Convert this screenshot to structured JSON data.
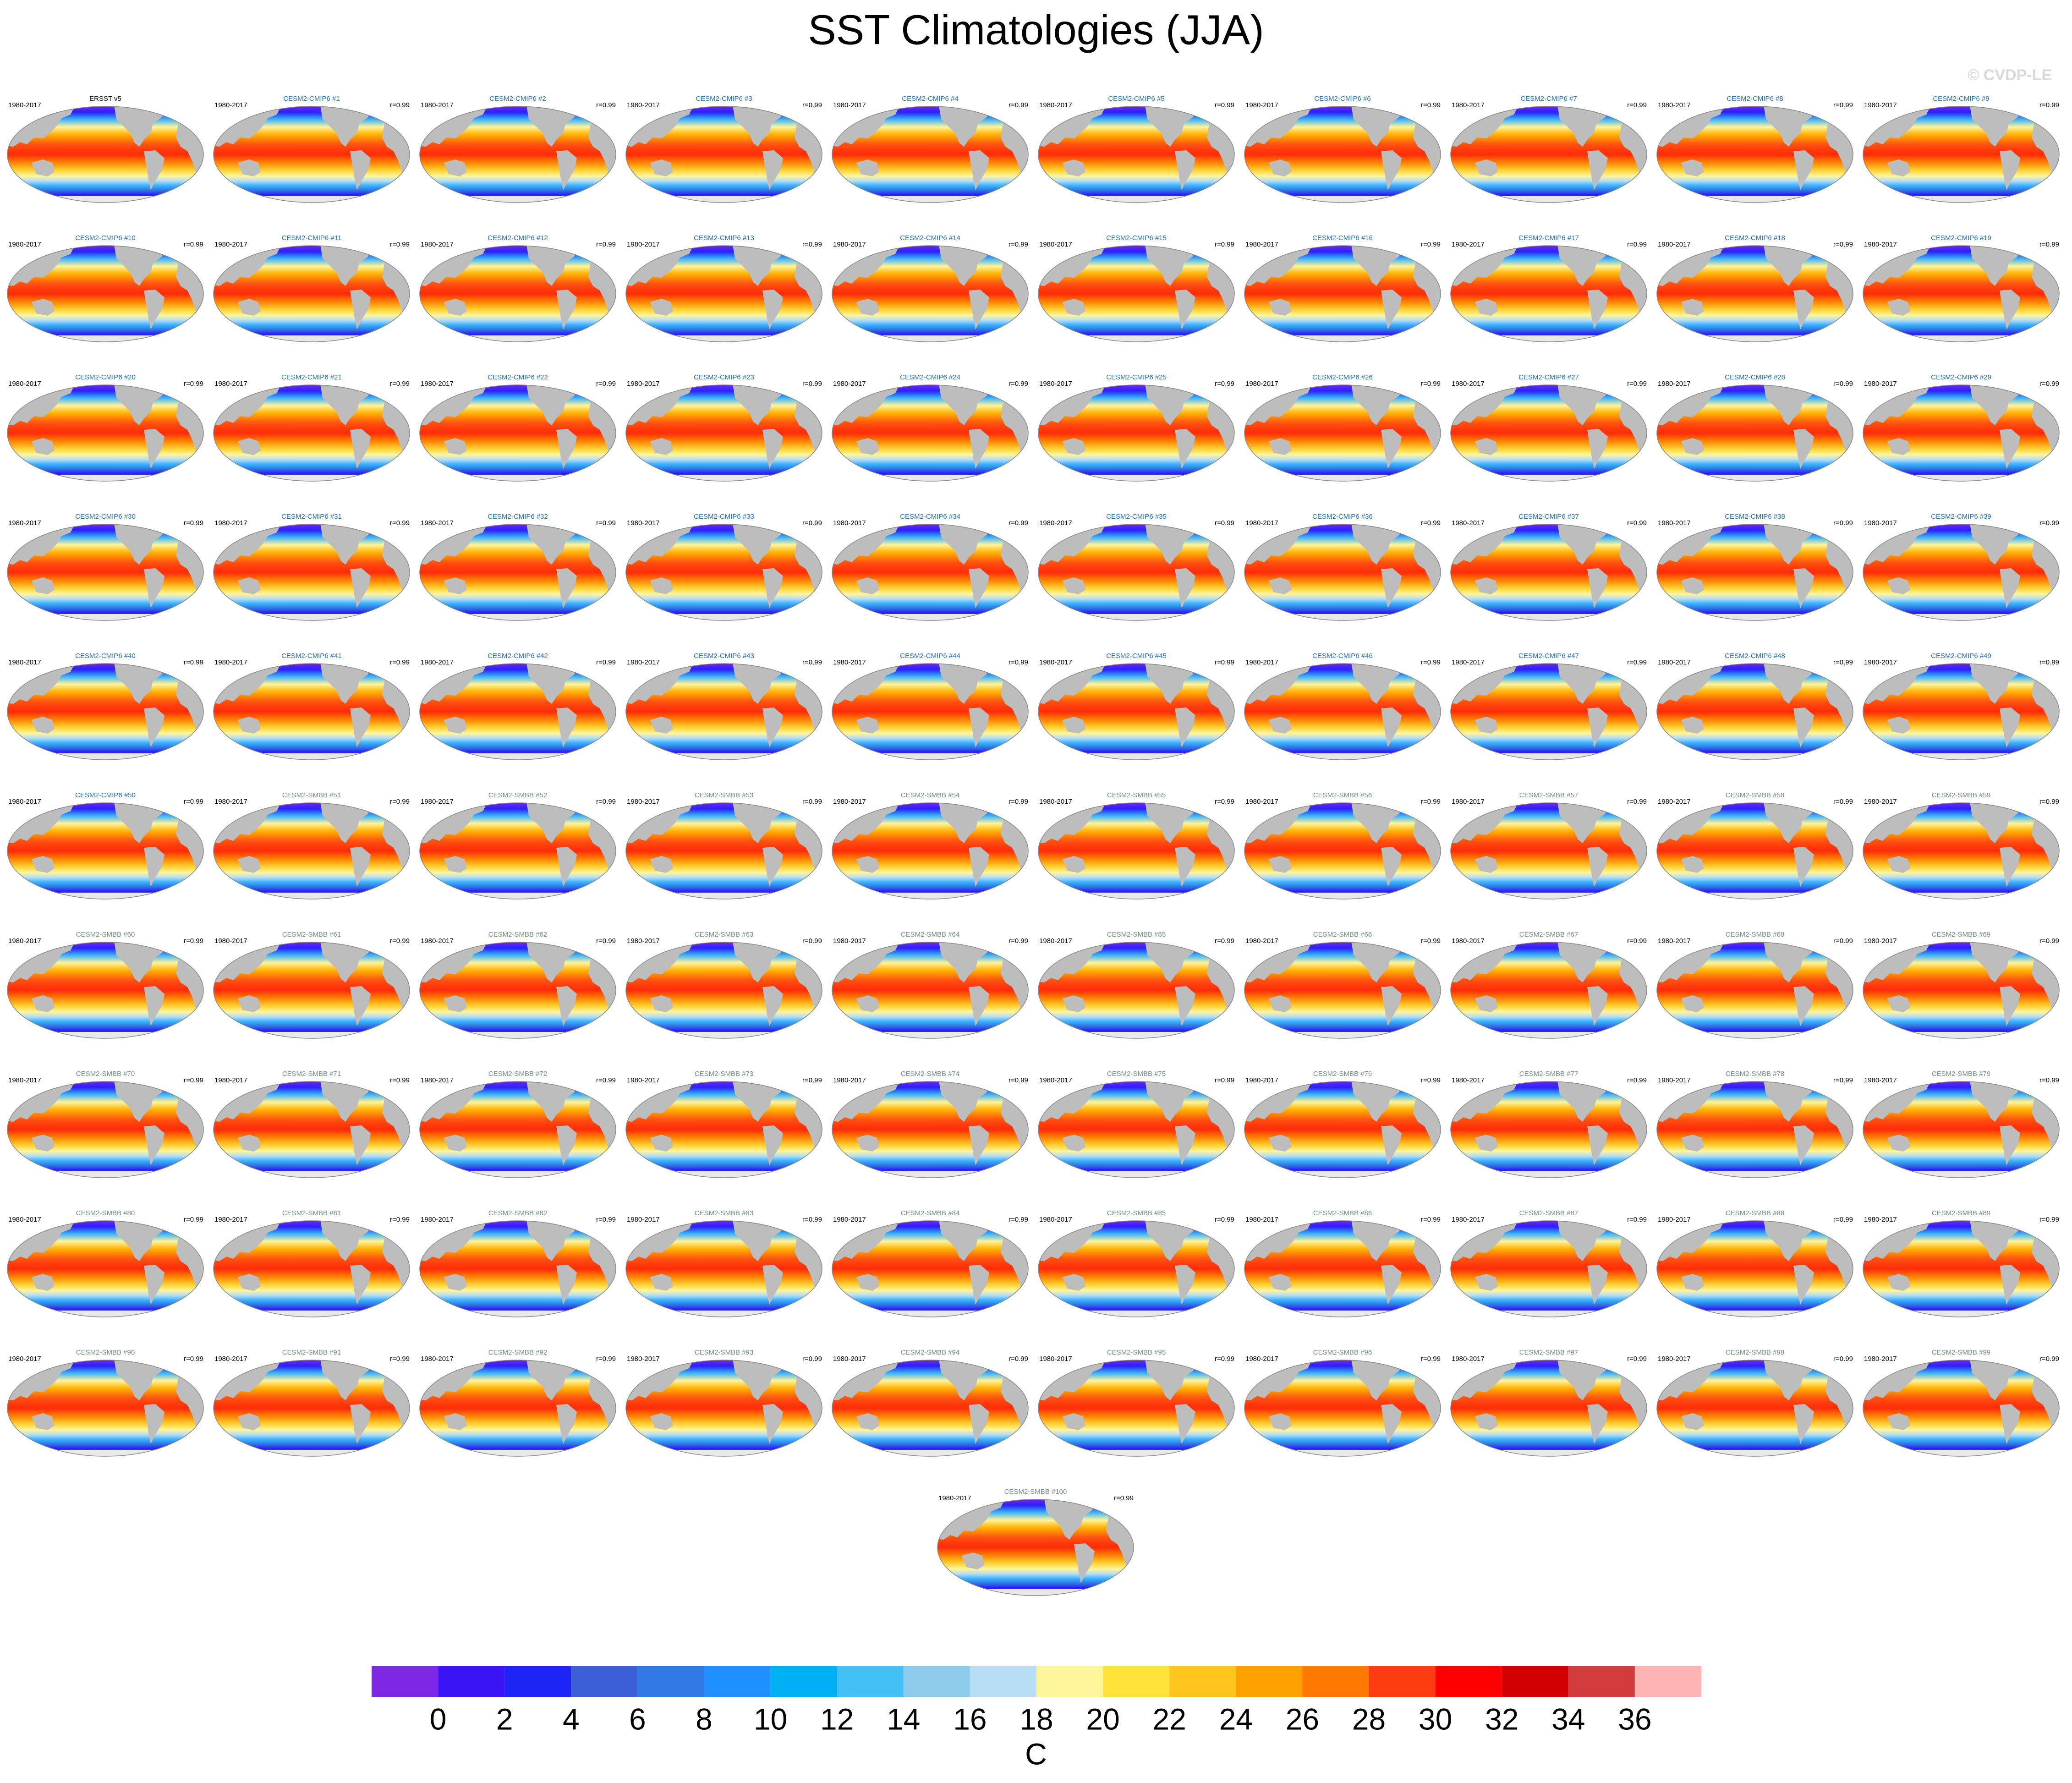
{
  "title": "SST Climatologies (JJA)",
  "watermark": "© CVDP-LE",
  "groups": [
    {
      "color": "#000000",
      "panels": [
        {
          "title": "ERSST v5",
          "period": "1980-2017"
        }
      ]
    },
    {
      "color": "#1f6fb5",
      "panels": [
        {
          "title": "CESM2-CMIP6 #1",
          "period": "1980-2017",
          "r": "r=0.99"
        },
        {
          "title": "CESM2-CMIP6 #2",
          "period": "1980-2017",
          "r": "r=0.99"
        },
        {
          "title": "CESM2-CMIP6 #3",
          "period": "1980-2017",
          "r": "r=0.99"
        },
        {
          "title": "CESM2-CMIP6 #4",
          "period": "1980-2017",
          "r": "r=0.99"
        },
        {
          "title": "CESM2-CMIP6 #5",
          "period": "1980-2017",
          "r": "r=0.99"
        },
        {
          "title": "CESM2-CMIP6 #6",
          "period": "1980-2017",
          "r": "r=0.99"
        },
        {
          "title": "CESM2-CMIP6 #7",
          "period": "1980-2017",
          "r": "r=0.99"
        },
        {
          "title": "CESM2-CMIP6 #8",
          "period": "1980-2017",
          "r": "r=0.99"
        },
        {
          "title": "CESM2-CMIP6 #9",
          "period": "1980-2017",
          "r": "r=0.99"
        },
        {
          "title": "CESM2-CMIP6 #10",
          "period": "1980-2017",
          "r": "r=0.99"
        },
        {
          "title": "CESM2-CMIP6 #11",
          "period": "1980-2017",
          "r": "r=0.99"
        },
        {
          "title": "CESM2-CMIP6 #12",
          "period": "1980-2017",
          "r": "r=0.99"
        },
        {
          "title": "CESM2-CMIP6 #13",
          "period": "1980-2017",
          "r": "r=0.99"
        },
        {
          "title": "CESM2-CMIP6 #14",
          "period": "1980-2017",
          "r": "r=0.99"
        },
        {
          "title": "CESM2-CMIP6 #15",
          "period": "1980-2017",
          "r": "r=0.99"
        },
        {
          "title": "CESM2-CMIP6 #16",
          "period": "1980-2017",
          "r": "r=0.99"
        },
        {
          "title": "CESM2-CMIP6 #17",
          "period": "1980-2017",
          "r": "r=0.99"
        },
        {
          "title": "CESM2-CMIP6 #18",
          "period": "1980-2017",
          "r": "r=0.99"
        },
        {
          "title": "CESM2-CMIP6 #19",
          "period": "1980-2017",
          "r": "r=0.99"
        },
        {
          "title": "CESM2-CMIP6 #20",
          "period": "1980-2017",
          "r": "r=0.99"
        },
        {
          "title": "CESM2-CMIP6 #21",
          "period": "1980-2017",
          "r": "r=0.99"
        },
        {
          "title": "CESM2-CMIP6 #22",
          "period": "1980-2017",
          "r": "r=0.99"
        },
        {
          "title": "CESM2-CMIP6 #23",
          "period": "1980-2017",
          "r": "r=0.99"
        },
        {
          "title": "CESM2-CMIP6 #24",
          "period": "1980-2017",
          "r": "r=0.99"
        },
        {
          "title": "CESM2-CMIP6 #25",
          "period": "1980-2017",
          "r": "r=0.99"
        },
        {
          "title": "CESM2-CMIP6 #26",
          "period": "1980-2017",
          "r": "r=0.99"
        },
        {
          "title": "CESM2-CMIP6 #27",
          "period": "1980-2017",
          "r": "r=0.99"
        },
        {
          "title": "CESM2-CMIP6 #28",
          "period": "1980-2017",
          "r": "r=0.99"
        },
        {
          "title": "CESM2-CMIP6 #29",
          "period": "1980-2017",
          "r": "r=0.99"
        },
        {
          "title": "CESM2-CMIP6 #30",
          "period": "1980-2017",
          "r": "r=0.99"
        },
        {
          "title": "CESM2-CMIP6 #31",
          "period": "1980-2017",
          "r": "r=0.99"
        },
        {
          "title": "CESM2-CMIP6 #32",
          "period": "1980-2017",
          "r": "r=0.99"
        },
        {
          "title": "CESM2-CMIP6 #33",
          "period": "1980-2017",
          "r": "r=0.99"
        },
        {
          "title": "CESM2-CMIP6 #34",
          "period": "1980-2017",
          "r": "r=0.99"
        },
        {
          "title": "CESM2-CMIP6 #35",
          "period": "1980-2017",
          "r": "r=0.99"
        },
        {
          "title": "CESM2-CMIP6 #36",
          "period": "1980-2017",
          "r": "r=0.99"
        },
        {
          "title": "CESM2-CMIP6 #37",
          "period": "1980-2017",
          "r": "r=0.99"
        },
        {
          "title": "CESM2-CMIP6 #38",
          "period": "1980-2017",
          "r": "r=0.99"
        },
        {
          "title": "CESM2-CMIP6 #39",
          "period": "1980-2017",
          "r": "r=0.99"
        },
        {
          "title": "CESM2-CMIP6 #40",
          "period": "1980-2017",
          "r": "r=0.99"
        },
        {
          "title": "CESM2-CMIP6 #41",
          "period": "1980-2017",
          "r": "r=0.99"
        },
        {
          "title": "CESM2-CMIP6 #42",
          "period": "1980-2017",
          "r": "r=0.99"
        },
        {
          "title": "CESM2-CMIP6 #43",
          "period": "1980-2017",
          "r": "r=0.99"
        },
        {
          "title": "CESM2-CMIP6 #44",
          "period": "1980-2017",
          "r": "r=0.99"
        },
        {
          "title": "CESM2-CMIP6 #45",
          "period": "1980-2017",
          "r": "r=0.99"
        },
        {
          "title": "CESM2-CMIP6 #46",
          "period": "1980-2017",
          "r": "r=0.99"
        },
        {
          "title": "CESM2-CMIP6 #47",
          "period": "1980-2017",
          "r": "r=0.99"
        },
        {
          "title": "CESM2-CMIP6 #48",
          "period": "1980-2017",
          "r": "r=0.99"
        },
        {
          "title": "CESM2-CMIP6 #49",
          "period": "1980-2017",
          "r": "r=0.99"
        },
        {
          "title": "CESM2-CMIP6 #50",
          "period": "1980-2017",
          "r": "r=0.99"
        }
      ]
    },
    {
      "color": "#6f8f80",
      "panels": [
        {
          "title": "CESM2-SMBB #51",
          "period": "1980-2017",
          "r": "r=0.99"
        },
        {
          "title": "CESM2-SMBB #52",
          "period": "1980-2017",
          "r": "r=0.99"
        },
        {
          "title": "CESM2-SMBB #53",
          "period": "1980-2017",
          "r": "r=0.99"
        },
        {
          "title": "CESM2-SMBB #54",
          "period": "1980-2017",
          "r": "r=0.99"
        },
        {
          "title": "CESM2-SMBB #55",
          "period": "1980-2017",
          "r": "r=0.99"
        },
        {
          "title": "CESM2-SMBB #56",
          "period": "1980-2017",
          "r": "r=0.99"
        },
        {
          "title": "CESM2-SMBB #57",
          "period": "1980-2017",
          "r": "r=0.99"
        },
        {
          "title": "CESM2-SMBB #58",
          "period": "1980-2017",
          "r": "r=0.99"
        },
        {
          "title": "CESM2-SMBB #59",
          "period": "1980-2017",
          "r": "r=0.99"
        },
        {
          "title": "CESM2-SMBB #60",
          "period": "1980-2017",
          "r": "r=0.99"
        },
        {
          "title": "CESM2-SMBB #61",
          "period": "1980-2017",
          "r": "r=0.99"
        },
        {
          "title": "CESM2-SMBB #62",
          "period": "1980-2017",
          "r": "r=0.99"
        },
        {
          "title": "CESM2-SMBB #63",
          "period": "1980-2017",
          "r": "r=0.99"
        },
        {
          "title": "CESM2-SMBB #64",
          "period": "1980-2017",
          "r": "r=0.99"
        },
        {
          "title": "CESM2-SMBB #65",
          "period": "1980-2017",
          "r": "r=0.99"
        },
        {
          "title": "CESM2-SMBB #66",
          "period": "1980-2017",
          "r": "r=0.99"
        },
        {
          "title": "CESM2-SMBB #67",
          "period": "1980-2017",
          "r": "r=0.99"
        },
        {
          "title": "CESM2-SMBB #68",
          "period": "1980-2017",
          "r": "r=0.99"
        },
        {
          "title": "CESM2-SMBB #69",
          "period": "1980-2017",
          "r": "r=0.99"
        },
        {
          "title": "CESM2-SMBB #70",
          "period": "1980-2017",
          "r": "r=0.99"
        },
        {
          "title": "CESM2-SMBB #71",
          "period": "1980-2017",
          "r": "r=0.99"
        },
        {
          "title": "CESM2-SMBB #72",
          "period": "1980-2017",
          "r": "r=0.99"
        },
        {
          "title": "CESM2-SMBB #73",
          "period": "1980-2017",
          "r": "r=0.99"
        },
        {
          "title": "CESM2-SMBB #74",
          "period": "1980-2017",
          "r": "r=0.99"
        },
        {
          "title": "CESM2-SMBB #75",
          "period": "1980-2017",
          "r": "r=0.99"
        },
        {
          "title": "CESM2-SMBB #76",
          "period": "1980-2017",
          "r": "r=0.99"
        },
        {
          "title": "CESM2-SMBB #77",
          "period": "1980-2017",
          "r": "r=0.99"
        },
        {
          "title": "CESM2-SMBB #78",
          "period": "1980-2017",
          "r": "r=0.99"
        },
        {
          "title": "CESM2-SMBB #79",
          "period": "1980-2017",
          "r": "r=0.99"
        },
        {
          "title": "CESM2-SMBB #80",
          "period": "1980-2017",
          "r": "r=0.99"
        },
        {
          "title": "CESM2-SMBB #81",
          "period": "1980-2017",
          "r": "r=0.99"
        },
        {
          "title": "CESM2-SMBB #82",
          "period": "1980-2017",
          "r": "r=0.99"
        },
        {
          "title": "CESM2-SMBB #83",
          "period": "1980-2017",
          "r": "r=0.99"
        },
        {
          "title": "CESM2-SMBB #84",
          "period": "1980-2017",
          "r": "r=0.99"
        },
        {
          "title": "CESM2-SMBB #85",
          "period": "1980-2017",
          "r": "r=0.99"
        },
        {
          "title": "CESM2-SMBB #86",
          "period": "1980-2017",
          "r": "r=0.99"
        },
        {
          "title": "CESM2-SMBB #87",
          "period": "1980-2017",
          "r": "r=0.99"
        },
        {
          "title": "CESM2-SMBB #88",
          "period": "1980-2017",
          "r": "r=0.99"
        },
        {
          "title": "CESM2-SMBB #89",
          "period": "1980-2017",
          "r": "r=0.99"
        },
        {
          "title": "CESM2-SMBB #90",
          "period": "1980-2017",
          "r": "r=0.99"
        },
        {
          "title": "CESM2-SMBB #91",
          "period": "1980-2017",
          "r": "r=0.99"
        },
        {
          "title": "CESM2-SMBB #92",
          "period": "1980-2017",
          "r": "r=0.99"
        },
        {
          "title": "CESM2-SMBB #93",
          "period": "1980-2017",
          "r": "r=0.99"
        },
        {
          "title": "CESM2-SMBB #94",
          "period": "1980-2017",
          "r": "r=0.99"
        },
        {
          "title": "CESM2-SMBB #95",
          "period": "1980-2017",
          "r": "r=0.99"
        },
        {
          "title": "CESM2-SMBB #96",
          "period": "1980-2017",
          "r": "r=0.99"
        },
        {
          "title": "CESM2-SMBB #97",
          "period": "1980-2017",
          "r": "r=0.99"
        },
        {
          "title": "CESM2-SMBB #98",
          "period": "1980-2017",
          "r": "r=0.99"
        },
        {
          "title": "CESM2-SMBB #99",
          "period": "1980-2017",
          "r": "r=0.99"
        },
        {
          "title": "CESM2-SMBB #100",
          "period": "1980-2017",
          "r": "r=0.99"
        }
      ]
    }
  ],
  "colorbar": {
    "colors": [
      "#7e28e6",
      "#3a14f5",
      "#1e24f5",
      "#3a5fd9",
      "#2e78e8",
      "#1e90ff",
      "#00b0f5",
      "#40c0f5",
      "#8ecbea",
      "#b8def5",
      "#fff59a",
      "#ffe23a",
      "#ffc41e",
      "#ffa000",
      "#ff7800",
      "#ff3c10",
      "#ff0000",
      "#d20000",
      "#d23c3c",
      "#ffb4b4"
    ],
    "levels": [
      0,
      2,
      4,
      6,
      8,
      10,
      12,
      14,
      16,
      18,
      20,
      22,
      24,
      26,
      28,
      30,
      32,
      34,
      36
    ],
    "label": "C"
  }
}
